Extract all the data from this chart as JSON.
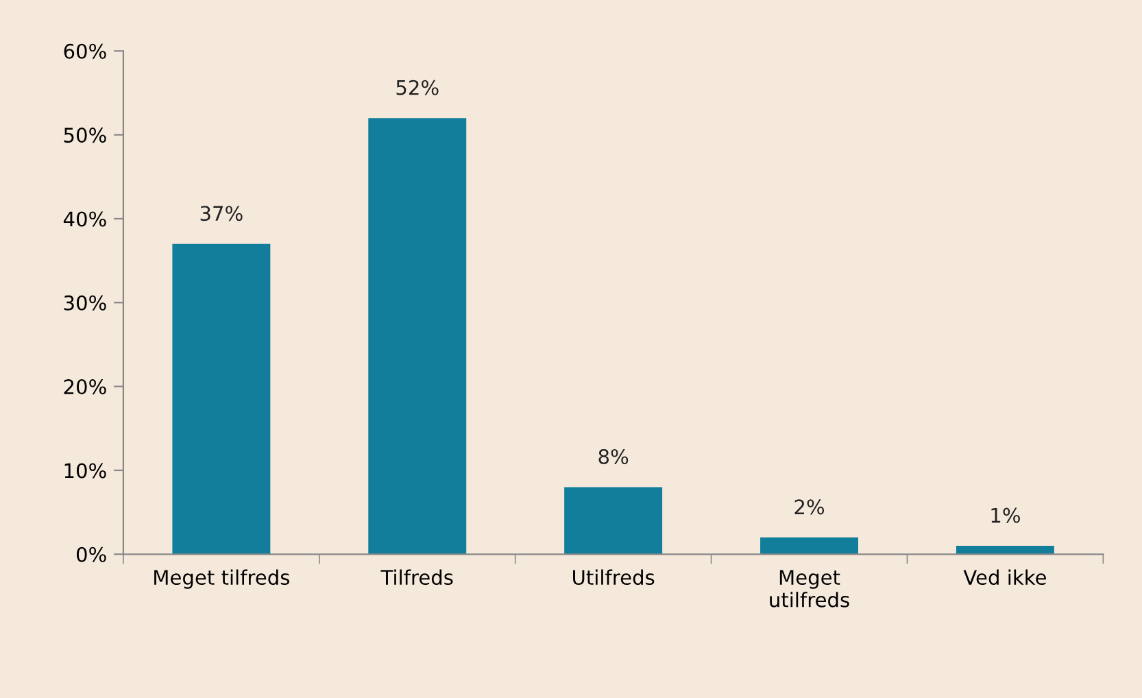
{
  "chart_data": {
    "type": "bar",
    "categories": [
      "Meget tilfreds",
      "Tilfreds",
      "Utilfreds",
      "Meget\nutilfreds",
      "Ved ikke"
    ],
    "values": [
      37,
      52,
      8,
      2,
      1
    ],
    "color": "#137e9b",
    "value_labels": [
      "37%",
      "52%",
      "8%",
      "2%",
      "1%"
    ],
    "ylim": [
      0,
      60
    ],
    "yticks": [
      {
        "value": 0,
        "label": "0%"
      },
      {
        "value": 10,
        "label": "10%"
      },
      {
        "value": 20,
        "label": "20%"
      },
      {
        "value": 30,
        "label": "30%"
      },
      {
        "value": 40,
        "label": "40%"
      },
      {
        "value": 50,
        "label": "50%"
      },
      {
        "value": 60,
        "label": "60%"
      }
    ],
    "grid": false,
    "legend": false
  }
}
